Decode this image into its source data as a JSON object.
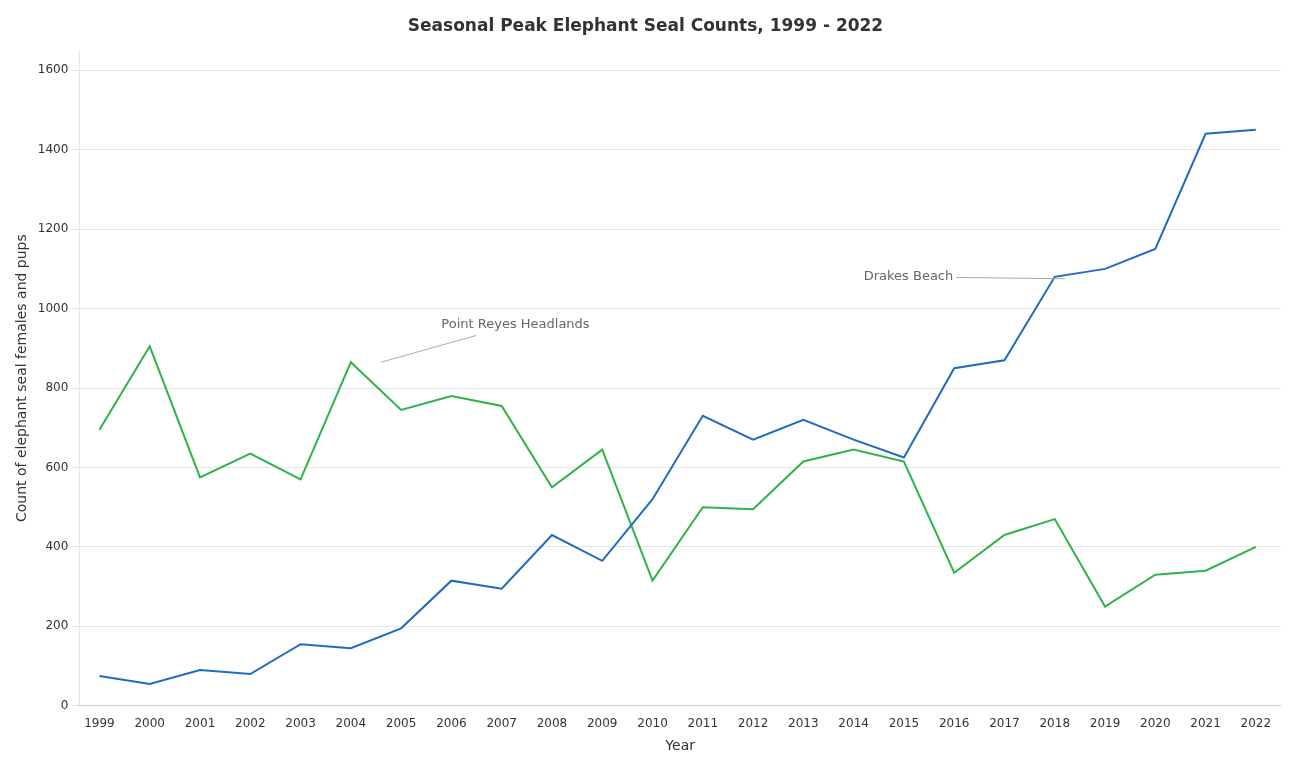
{
  "chart_data": {
    "type": "line",
    "title": "Seasonal Peak Elephant Seal Counts, 1999 - 2022",
    "x_label": "Year",
    "y_label": "Count of elephant seal females and pups",
    "x": [
      1999,
      2000,
      2001,
      2002,
      2003,
      2004,
      2005,
      2006,
      2007,
      2008,
      2009,
      2010,
      2011,
      2012,
      2013,
      2014,
      2015,
      2016,
      2017,
      2018,
      2019,
      2020,
      2021,
      2022
    ],
    "series": [
      {
        "name": "Drakes Beach",
        "color": "#1f6bbf",
        "values": [
          75,
          55,
          90,
          80,
          155,
          145,
          195,
          315,
          295,
          430,
          365,
          520,
          730,
          670,
          720,
          670,
          625,
          850,
          870,
          1080,
          1100,
          1150,
          1440,
          1450
        ]
      },
      {
        "name": "Point Reyes Headlands",
        "color": "#2db34a",
        "values": [
          695,
          905,
          575,
          635,
          570,
          865,
          745,
          780,
          755,
          550,
          645,
          315,
          500,
          495,
          615,
          645,
          615,
          335,
          430,
          470,
          250,
          330,
          340,
          400
        ]
      }
    ],
    "xlim": [
      1998.6,
      2022.5
    ],
    "xticks": [
      1999,
      2000,
      2001,
      2002,
      2003,
      2004,
      2005,
      2006,
      2007,
      2008,
      2009,
      2010,
      2011,
      2012,
      2013,
      2014,
      2015,
      2016,
      2017,
      2018,
      2019,
      2020,
      2021,
      2022
    ],
    "ylim": [
      0,
      1650
    ],
    "yticks": [
      0,
      200,
      400,
      600,
      800,
      1000,
      1200,
      1400,
      1600
    ],
    "grid": "y",
    "annotations": [
      {
        "text": "Drakes Beach",
        "xy": [
          2018.2,
          1075
        ],
        "xytext": [
          2014.2,
          1080
        ]
      },
      {
        "text": "Point Reyes Headlands",
        "xy": [
          2004.6,
          865
        ],
        "xytext": [
          2005.8,
          960
        ]
      }
    ]
  }
}
